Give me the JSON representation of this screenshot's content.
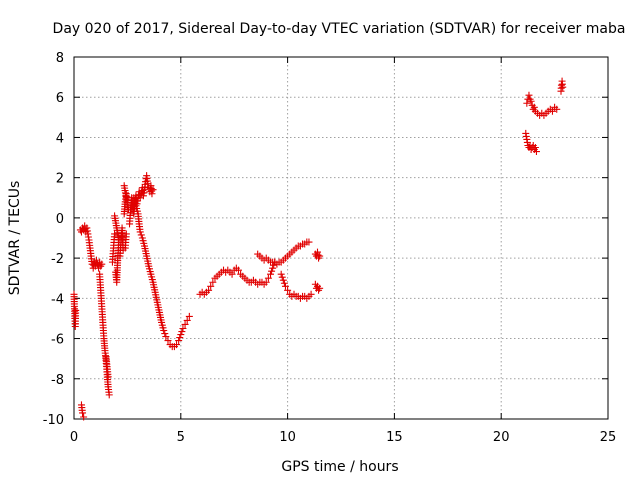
{
  "chart_data": {
    "type": "scatter",
    "title": "Day 020 of 2017, Sidereal Day-to-day VTEC variation (SDTVAR) for receiver maba",
    "xlabel": "GPS time / hours",
    "ylabel": "SDTVAR / TECUs",
    "xlim": [
      0,
      25
    ],
    "ylim": [
      -10,
      8
    ],
    "xticks": [
      0,
      5,
      10,
      15,
      20,
      25
    ],
    "yticks": [
      -10,
      -8,
      -6,
      -4,
      -2,
      0,
      2,
      4,
      6,
      8
    ],
    "xtick_labels": [
      "0",
      "5",
      "10",
      "15",
      "20",
      "25"
    ],
    "ytick_labels": [
      "-10",
      "-8",
      "-6",
      "-4",
      "-2",
      "0",
      "2",
      "4",
      "6",
      "8"
    ],
    "grid": true,
    "marker": "plus",
    "color": "#e00000",
    "series": [
      {
        "name": "SDTVAR",
        "segments": [
          [
            [
              0.0,
              -3.8
            ],
            [
              0.02,
              -4.4
            ],
            [
              0.04,
              -5.0
            ],
            [
              0.06,
              -5.4
            ],
            [
              0.08,
              -4.6
            ]
          ],
          [
            [
              0.35,
              -9.3
            ],
            [
              0.4,
              -9.7
            ],
            [
              0.45,
              -9.9
            ]
          ],
          [
            [
              0.3,
              -0.6
            ],
            [
              0.35,
              -0.7
            ],
            [
              0.4,
              -0.5
            ],
            [
              0.45,
              -0.6
            ],
            [
              0.5,
              -0.4
            ],
            [
              0.55,
              -0.7
            ],
            [
              0.6,
              -0.5
            ],
            [
              0.65,
              -0.8
            ],
            [
              0.7,
              -1.1
            ],
            [
              0.75,
              -1.5
            ],
            [
              0.8,
              -1.9
            ],
            [
              0.85,
              -2.3
            ],
            [
              0.9,
              -2.5
            ],
            [
              0.95,
              -2.2
            ],
            [
              1.0,
              -2.4
            ],
            [
              1.05,
              -2.1
            ],
            [
              1.1,
              -2.3
            ],
            [
              1.15,
              -2.5
            ],
            [
              1.2,
              -2.2
            ],
            [
              1.25,
              -2.4
            ],
            [
              1.3,
              -2.3
            ]
          ],
          [
            [
              1.2,
              -2.8
            ],
            [
              1.25,
              -3.6
            ],
            [
              1.3,
              -4.4
            ],
            [
              1.35,
              -5.2
            ],
            [
              1.4,
              -6.0
            ],
            [
              1.45,
              -6.6
            ],
            [
              1.5,
              -7.1
            ],
            [
              1.55,
              -7.8
            ],
            [
              1.6,
              -8.4
            ],
            [
              1.65,
              -8.8
            ],
            [
              1.5,
              -6.9
            ],
            [
              1.6,
              -7.9
            ]
          ],
          [
            [
              1.8,
              -2.2
            ],
            [
              1.85,
              -1.5
            ],
            [
              1.9,
              -0.8
            ],
            [
              1.95,
              -2.7
            ],
            [
              2.0,
              -3.2
            ],
            [
              2.05,
              -2.0
            ],
            [
              2.1,
              -1.1
            ],
            [
              1.9,
              0.1
            ]
          ],
          [
            [
              2.15,
              -1.9
            ],
            [
              2.2,
              -1.2
            ],
            [
              2.25,
              -0.5
            ],
            [
              2.3,
              -1.6
            ],
            [
              2.35,
              0.2
            ],
            [
              2.4,
              0.8
            ],
            [
              2.45,
              1.2
            ],
            [
              2.5,
              0.9
            ],
            [
              2.55,
              0.4
            ],
            [
              2.35,
              1.6
            ],
            [
              2.45,
              -0.8
            ],
            [
              2.4,
              -1.5
            ]
          ],
          [
            [
              2.6,
              -0.3
            ],
            [
              2.65,
              0.4
            ],
            [
              2.7,
              1.0
            ],
            [
              2.75,
              0.6
            ],
            [
              2.8,
              0.2
            ],
            [
              2.85,
              0.8
            ],
            [
              2.9,
              1.1
            ],
            [
              2.95,
              0.7
            ],
            [
              3.0,
              1.0
            ],
            [
              3.05,
              1.3
            ],
            [
              3.1,
              1.0
            ],
            [
              3.15,
              1.2
            ],
            [
              3.2,
              1.5
            ],
            [
              3.25,
              1.1
            ],
            [
              3.3,
              1.4
            ],
            [
              3.35,
              1.8
            ],
            [
              3.4,
              2.1
            ],
            [
              3.45,
              1.7
            ],
            [
              3.5,
              1.5
            ],
            [
              3.55,
              1.3
            ],
            [
              3.6,
              1.6
            ],
            [
              3.65,
              1.2
            ],
            [
              3.7,
              1.4
            ]
          ],
          [
            [
              2.8,
              1.0
            ],
            [
              2.9,
              0.6
            ],
            [
              3.0,
              0.2
            ],
            [
              3.05,
              -0.3
            ],
            [
              3.1,
              -0.7
            ],
            [
              3.2,
              -1.0
            ],
            [
              3.3,
              -1.4
            ],
            [
              3.4,
              -1.9
            ],
            [
              3.5,
              -2.4
            ],
            [
              3.6,
              -2.8
            ],
            [
              3.7,
              -3.2
            ],
            [
              3.8,
              -3.7
            ],
            [
              3.9,
              -4.2
            ],
            [
              4.0,
              -4.7
            ],
            [
              4.1,
              -5.2
            ],
            [
              4.2,
              -5.6
            ],
            [
              4.3,
              -5.9
            ],
            [
              4.4,
              -6.1
            ],
            [
              4.5,
              -6.3
            ],
            [
              4.6,
              -6.4
            ],
            [
              4.7,
              -6.4
            ],
            [
              4.8,
              -6.3
            ],
            [
              4.9,
              -6.1
            ],
            [
              5.0,
              -5.8
            ],
            [
              5.1,
              -5.5
            ],
            [
              5.2,
              -5.3
            ],
            [
              5.3,
              -5.1
            ],
            [
              5.4,
              -4.9
            ]
          ],
          [
            [
              5.9,
              -3.8
            ],
            [
              6.0,
              -3.7
            ],
            [
              6.1,
              -3.8
            ],
            [
              6.2,
              -3.7
            ],
            [
              6.3,
              -3.6
            ],
            [
              6.4,
              -3.4
            ],
            [
              6.5,
              -3.2
            ],
            [
              6.6,
              -3.0
            ],
            [
              6.7,
              -2.9
            ],
            [
              6.8,
              -2.8
            ],
            [
              6.9,
              -2.7
            ],
            [
              7.0,
              -2.6
            ],
            [
              7.1,
              -2.7
            ],
            [
              7.2,
              -2.6
            ],
            [
              7.3,
              -2.7
            ],
            [
              7.4,
              -2.8
            ],
            [
              7.5,
              -2.6
            ],
            [
              7.6,
              -2.5
            ],
            [
              7.7,
              -2.6
            ],
            [
              7.8,
              -2.8
            ],
            [
              7.9,
              -2.9
            ],
            [
              8.0,
              -3.0
            ],
            [
              8.1,
              -3.1
            ],
            [
              8.2,
              -3.2
            ],
            [
              8.3,
              -3.2
            ],
            [
              8.4,
              -3.1
            ],
            [
              8.5,
              -3.2
            ],
            [
              8.6,
              -3.3
            ],
            [
              8.7,
              -3.2
            ],
            [
              8.8,
              -3.2
            ],
            [
              8.9,
              -3.3
            ],
            [
              9.0,
              -3.2
            ],
            [
              9.1,
              -3.0
            ],
            [
              9.2,
              -2.8
            ],
            [
              9.3,
              -2.5
            ],
            [
              9.4,
              -2.2
            ]
          ],
          [
            [
              8.6,
              -1.8
            ],
            [
              8.7,
              -1.9
            ],
            [
              8.8,
              -2.0
            ],
            [
              8.9,
              -2.1
            ],
            [
              9.0,
              -2.0
            ],
            [
              9.1,
              -2.1
            ],
            [
              9.2,
              -2.2
            ],
            [
              9.3,
              -2.2
            ],
            [
              9.4,
              -2.2
            ],
            [
              9.5,
              -2.3
            ],
            [
              9.6,
              -2.2
            ],
            [
              9.7,
              -2.2
            ],
            [
              9.8,
              -2.1
            ],
            [
              9.9,
              -2.0
            ],
            [
              10.0,
              -1.9
            ],
            [
              10.1,
              -1.8
            ],
            [
              10.2,
              -1.7
            ],
            [
              10.3,
              -1.6
            ],
            [
              10.4,
              -1.5
            ],
            [
              10.5,
              -1.4
            ],
            [
              10.6,
              -1.4
            ],
            [
              10.7,
              -1.3
            ],
            [
              10.8,
              -1.3
            ],
            [
              10.9,
              -1.2
            ],
            [
              11.0,
              -1.2
            ]
          ],
          [
            [
              9.7,
              -2.8
            ],
            [
              9.8,
              -3.1
            ],
            [
              9.9,
              -3.4
            ],
            [
              10.0,
              -3.6
            ],
            [
              10.1,
              -3.8
            ],
            [
              10.2,
              -3.9
            ],
            [
              10.3,
              -3.8
            ],
            [
              10.4,
              -3.9
            ],
            [
              10.5,
              -3.9
            ],
            [
              10.6,
              -4.0
            ],
            [
              10.7,
              -3.9
            ],
            [
              10.8,
              -3.9
            ],
            [
              10.9,
              -4.0
            ],
            [
              11.0,
              -3.9
            ],
            [
              11.1,
              -3.8
            ]
          ],
          [
            [
              11.3,
              -3.3
            ],
            [
              11.35,
              -3.5
            ],
            [
              11.4,
              -3.4
            ],
            [
              11.45,
              -3.6
            ],
            [
              11.5,
              -3.5
            ],
            [
              11.3,
              -1.8
            ],
            [
              11.35,
              -1.9
            ],
            [
              11.4,
              -1.7
            ],
            [
              11.45,
              -2.0
            ],
            [
              11.5,
              -1.9
            ]
          ],
          [
            [
              21.15,
              4.2
            ],
            [
              21.2,
              3.9
            ],
            [
              21.25,
              3.6
            ],
            [
              21.3,
              3.5
            ],
            [
              21.35,
              3.6
            ],
            [
              21.4,
              3.4
            ],
            [
              21.45,
              3.5
            ],
            [
              21.5,
              3.6
            ],
            [
              21.55,
              3.4
            ],
            [
              21.6,
              3.5
            ],
            [
              21.65,
              3.3
            ]
          ],
          [
            [
              21.2,
              5.7
            ],
            [
              21.25,
              5.9
            ],
            [
              21.3,
              6.1
            ],
            [
              21.35,
              5.9
            ],
            [
              21.4,
              5.8
            ],
            [
              21.45,
              5.6
            ],
            [
              21.5,
              5.4
            ],
            [
              21.55,
              5.5
            ],
            [
              21.6,
              5.3
            ],
            [
              21.7,
              5.2
            ],
            [
              21.8,
              5.1
            ],
            [
              21.9,
              5.2
            ],
            [
              22.0,
              5.1
            ],
            [
              22.1,
              5.2
            ],
            [
              22.2,
              5.3
            ],
            [
              22.3,
              5.4
            ],
            [
              22.4,
              5.3
            ],
            [
              22.5,
              5.5
            ],
            [
              22.6,
              5.4
            ]
          ],
          [
            [
              22.8,
              6.3
            ],
            [
              22.82,
              6.6
            ],
            [
              22.85,
              6.8
            ],
            [
              22.88,
              6.5
            ]
          ]
        ]
      }
    ]
  }
}
